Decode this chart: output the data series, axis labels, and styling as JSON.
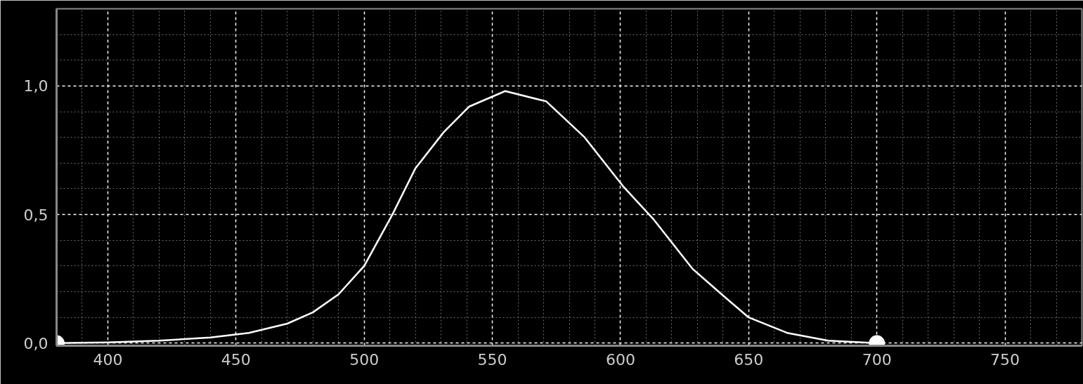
{
  "chart_data": {
    "type": "line",
    "x": [
      380,
      400,
      420,
      440,
      455,
      470,
      480,
      490,
      500,
      511,
      520,
      531,
      541,
      555,
      571,
      586,
      601,
      613,
      628,
      640,
      650,
      665,
      681,
      700
    ],
    "series": [
      {
        "color": "#ffffff",
        "values": [
          0,
          0.003,
          0.01,
          0.022,
          0.04,
          0.076,
          0.12,
          0.19,
          0.3,
          0.5,
          0.68,
          0.82,
          0.92,
          0.98,
          0.94,
          0.8,
          0.61,
          0.48,
          0.29,
          0.185,
          0.1,
          0.04,
          0.01,
          0
        ]
      },
      {
        "type": "scatter",
        "marker": "circle",
        "color": "#ffffff",
        "x": [
          380,
          700
        ],
        "values": [
          0,
          0
        ]
      }
    ],
    "xlim": [
      380,
      780
    ],
    "ylim": [
      -0.01,
      1.3
    ],
    "xticks": [
      400,
      450,
      500,
      550,
      600,
      650,
      700,
      750
    ],
    "yticks": [
      {
        "value": 0,
        "label": "0,0"
      },
      {
        "value": 0.5,
        "label": "0,5"
      },
      {
        "value": 1,
        "label": "1,0"
      }
    ],
    "grid": true,
    "marker": "none",
    "line_style": "solid"
  }
}
